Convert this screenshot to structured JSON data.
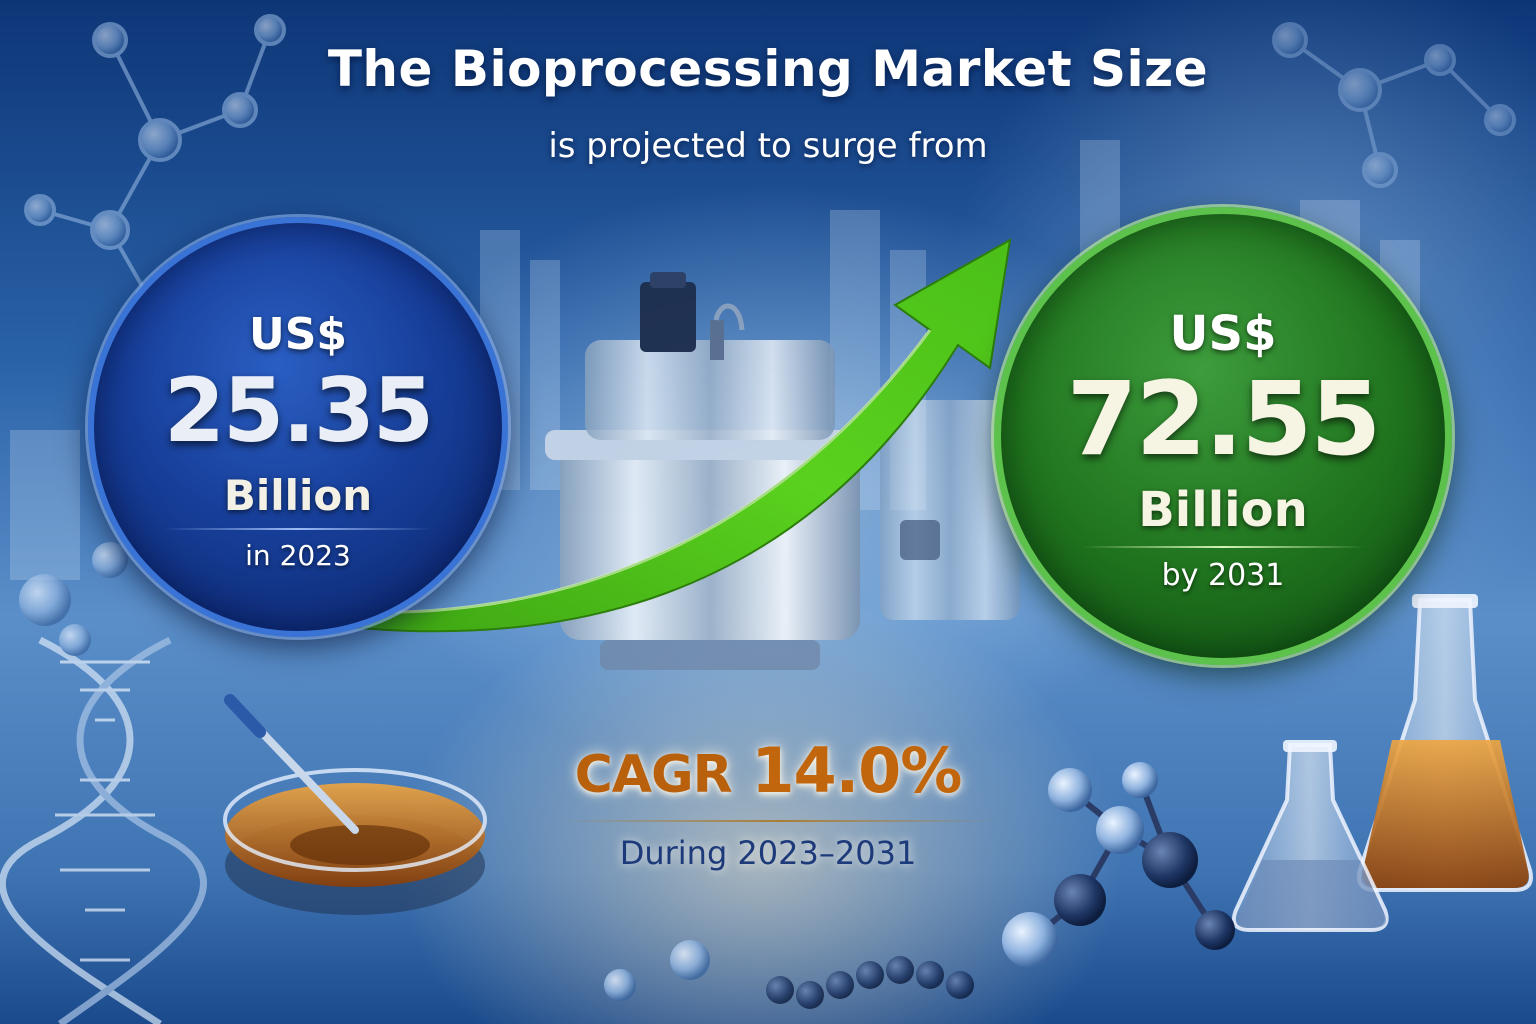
{
  "title": "The Bioprocessing Market Size",
  "subtitle": "is projected to surge from",
  "start": {
    "currency": "US$",
    "value": "25.35",
    "unit": "Billion",
    "period": "in 2023"
  },
  "end": {
    "currency": "US$",
    "value": "72.55",
    "unit": "Billion",
    "period": "by 2031"
  },
  "cagr": {
    "label": "CAGR",
    "value": "14.0%",
    "period": "During 2023–2031"
  },
  "colors": {
    "start_circle": "#173f9a",
    "end_circle": "#21761f",
    "arrow": "#4fc61c",
    "cagr_text": "#c2660e",
    "during_text": "#1d3a7a"
  },
  "icons": [
    "molecule-icon",
    "dna-helix-icon",
    "bioreactor-icon",
    "petri-dish-icon",
    "flask-icon",
    "growth-arrow-icon"
  ]
}
